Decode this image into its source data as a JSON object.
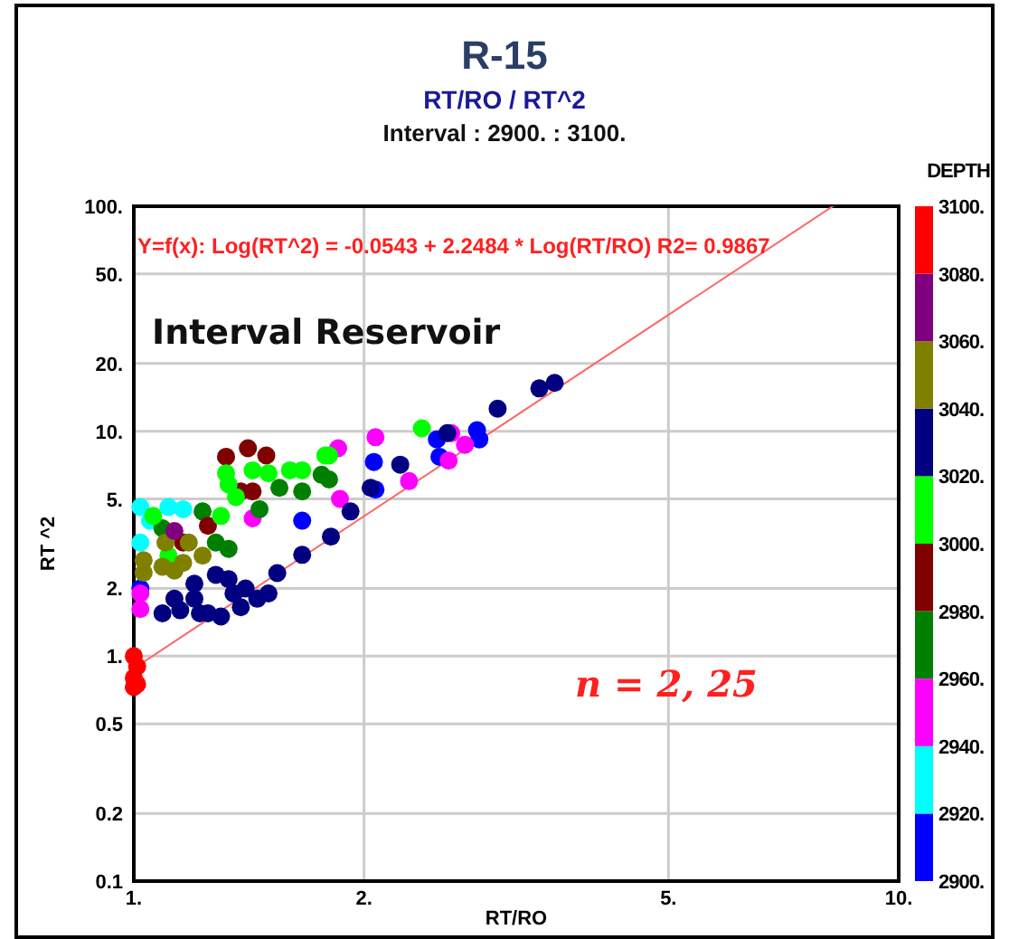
{
  "chart_data": {
    "type": "scatter",
    "title": "R-15",
    "subtitle": "RT/RO / RT^2",
    "xlabel": "RT/RO",
    "ylabel": "RT ^2",
    "clabel": "DEPTH",
    "annotations": [
      "Interval : 2900. : 3100.",
      "Y=f(x): Log(RT^2) = -0.0543  +  2.2484 * Log(RT/RO)   R2= 0.9867",
      "Interval Reservoir",
      "n = 2, 25"
    ],
    "log": "xy",
    "grid": true,
    "marker": "circle",
    "xlim": [
      1,
      10
    ],
    "xticks": [
      {
        "value": 1,
        "label": "1."
      },
      {
        "value": 2,
        "label": "2."
      },
      {
        "value": 5,
        "label": "5."
      },
      {
        "value": 10,
        "label": "10."
      }
    ],
    "ylim": [
      0.1,
      100
    ],
    "yticks": [
      {
        "value": 0.1,
        "label": "0.1"
      },
      {
        "value": 0.2,
        "label": "0.2"
      },
      {
        "value": 0.5,
        "label": "0.5"
      },
      {
        "value": 1,
        "label": "1."
      },
      {
        "value": 2,
        "label": "2."
      },
      {
        "value": 5,
        "label": "5."
      },
      {
        "value": 10,
        "label": "10."
      },
      {
        "value": 20,
        "label": "20."
      },
      {
        "value": 50,
        "label": "50."
      },
      {
        "value": 100,
        "label": "100."
      }
    ],
    "clim": [
      2900,
      3100
    ],
    "cticks": [
      {
        "value": 2900,
        "label": "2900."
      },
      {
        "value": 2920,
        "label": "2920."
      },
      {
        "value": 2940,
        "label": "2940."
      },
      {
        "value": 2960,
        "label": "2960."
      },
      {
        "value": 2980,
        "label": "2980."
      },
      {
        "value": 3000,
        "label": "3000."
      },
      {
        "value": 3020,
        "label": "3020."
      },
      {
        "value": 3040,
        "label": "3040."
      },
      {
        "value": 3060,
        "label": "3060."
      },
      {
        "value": 3080,
        "label": "3080."
      },
      {
        "value": 3100,
        "label": "3100."
      }
    ],
    "colors": [
      "#0000ff",
      "#00ffff",
      "#ff00ff",
      "#008000",
      "#800000",
      "#00ff00",
      "#000080",
      "#808000",
      "#800080",
      "#ff0000"
    ],
    "series": [
      {
        "type": "line",
        "marker": "none",
        "color": "#ff6666",
        "x": [
          1,
          8.2
        ],
        "values": [
          0.882,
          100
        ]
      },
      {
        "x": [
          1.0,
          1.01,
          1.0,
          1.01,
          1.0,
          1.09,
          1.15,
          1.2,
          1.25,
          1.3,
          1.35,
          1.4,
          1.2,
          1.28,
          1.33,
          1.45,
          1.5,
          1.38,
          1.13,
          1.22,
          1.54,
          1.66,
          1.81,
          1.92,
          2.04,
          2.23,
          2.57,
          2.99,
          3.39,
          3.55,
          2.06,
          2.49,
          2.51,
          2.81,
          2.83,
          2.07,
          1.66,
          1.02,
          2.07,
          1.85,
          1.86,
          2.29,
          2.58,
          2.71,
          2.6,
          1.02,
          1.02,
          1.43,
          1.23,
          1.28,
          1.33,
          1.46,
          1.55,
          1.66,
          1.76,
          1.8,
          1.09,
          1.32,
          1.41,
          1.49,
          1.38,
          1.43,
          1.25,
          1.16,
          1.32,
          1.33,
          1.36,
          1.43,
          1.5,
          1.6,
          1.66,
          1.78,
          1.3,
          1.06,
          1.11,
          2.38,
          1.8,
          1.02,
          1.11,
          1.16,
          1.05,
          1.02,
          1.03,
          1.09,
          1.13,
          1.03,
          1.1,
          1.18,
          1.23,
          1.16,
          1.13
        ],
        "values": [
          1.0,
          0.9,
          0.8,
          0.75,
          0.73,
          1.55,
          1.6,
          1.8,
          1.55,
          1.5,
          1.9,
          2.0,
          2.1,
          2.3,
          2.2,
          1.8,
          1.9,
          1.65,
          1.8,
          1.55,
          2.34,
          2.82,
          3.4,
          4.4,
          5.6,
          7.1,
          9.8,
          12.6,
          15.5,
          16.4,
          7.3,
          9.2,
          7.7,
          10.1,
          9.2,
          5.5,
          4.0,
          2.0,
          9.4,
          8.4,
          5.0,
          6.0,
          7.4,
          8.7,
          9.8,
          1.62,
          1.9,
          4.1,
          4.4,
          3.2,
          3.0,
          4.5,
          5.6,
          5.4,
          6.4,
          6.1,
          3.7,
          7.7,
          8.4,
          7.8,
          5.4,
          5.4,
          3.8,
          3.2,
          6.5,
          5.8,
          5.1,
          6.7,
          6.5,
          6.7,
          6.7,
          7.8,
          4.2,
          4.2,
          2.8,
          10.3,
          7.8,
          4.6,
          4.6,
          4.5,
          4.0,
          3.2,
          2.67,
          2.5,
          2.4,
          2.35,
          3.2,
          3.2,
          2.8,
          2.6,
          3.6
        ],
        "cvalues": [
          3090,
          3090,
          3090,
          3090,
          3090,
          3030,
          3030,
          3030,
          3030,
          3030,
          3030,
          3030,
          3030,
          3030,
          3030,
          3030,
          3030,
          3030,
          3030,
          3030,
          3030,
          3030,
          3030,
          3030,
          3030,
          3030,
          3030,
          3030,
          3030,
          3030,
          2910,
          2910,
          2910,
          2910,
          2910,
          2910,
          2910,
          2910,
          2950,
          2950,
          2950,
          2950,
          2950,
          2950,
          2950,
          2950,
          2950,
          2950,
          2970,
          2970,
          2970,
          2970,
          2970,
          2970,
          2970,
          2970,
          2970,
          2990,
          2990,
          2990,
          2990,
          2990,
          2990,
          2990,
          3010,
          3010,
          3010,
          3010,
          3010,
          3010,
          3010,
          3010,
          3010,
          3010,
          3010,
          3010,
          3010,
          2930,
          2930,
          2930,
          2930,
          2930,
          3050,
          3050,
          3050,
          3050,
          3050,
          3050,
          3050,
          3050,
          3070
        ],
        "colors": [
          "#ff0000",
          "#ff0000",
          "#ff0000",
          "#ff0000",
          "#ff0000",
          "#000080",
          "#000080",
          "#000080",
          "#000080",
          "#000080",
          "#000080",
          "#000080",
          "#000080",
          "#000080",
          "#000080",
          "#000080",
          "#000080",
          "#000080",
          "#000080",
          "#000080",
          "#000080",
          "#000080",
          "#000080",
          "#000080",
          "#000080",
          "#000080",
          "#000080",
          "#000080",
          "#000080",
          "#000080",
          "#0000ff",
          "#0000ff",
          "#0000ff",
          "#0000ff",
          "#0000ff",
          "#0000ff",
          "#0000ff",
          "#0000ff",
          "#ff00ff",
          "#ff00ff",
          "#ff00ff",
          "#ff00ff",
          "#ff00ff",
          "#ff00ff",
          "#ff00ff",
          "#ff00ff",
          "#ff00ff",
          "#ff00ff",
          "#008000",
          "#008000",
          "#008000",
          "#008000",
          "#008000",
          "#008000",
          "#008000",
          "#008000",
          "#008000",
          "#800000",
          "#800000",
          "#800000",
          "#800000",
          "#800000",
          "#800000",
          "#800000",
          "#00ff00",
          "#00ff00",
          "#00ff00",
          "#00ff00",
          "#00ff00",
          "#00ff00",
          "#00ff00",
          "#00ff00",
          "#00ff00",
          "#00ff00",
          "#00ff00",
          "#00ff00",
          "#00ff00",
          "#00ffff",
          "#00ffff",
          "#00ffff",
          "#00ffff",
          "#00ffff",
          "#808000",
          "#808000",
          "#808000",
          "#808000",
          "#808000",
          "#808000",
          "#808000",
          "#808000",
          "#800080"
        ]
      }
    ]
  }
}
